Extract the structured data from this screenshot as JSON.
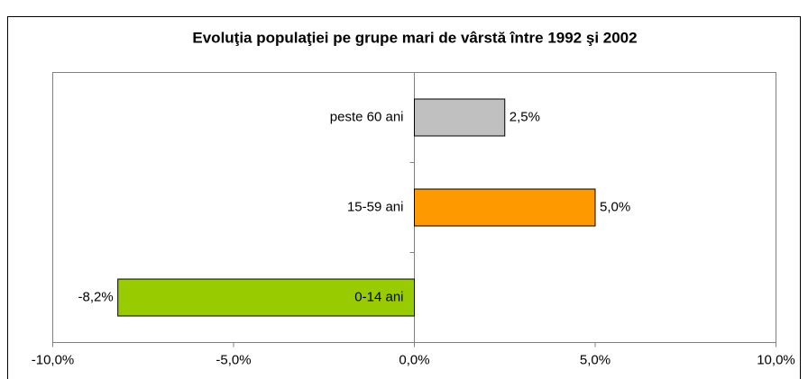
{
  "chart_data": {
    "type": "barh",
    "title": "Evoluţia populaţiei pe grupe mari de vârstă între 1992 şi 2002",
    "categories": [
      "0-14 ani",
      "15-59 ani",
      "peste 60 ani"
    ],
    "values": [
      -8.2,
      5.0,
      2.5
    ],
    "value_labels": [
      "-8,2%",
      "5,0%",
      "2,5%"
    ],
    "colors": [
      "#99cc00",
      "#ff9900",
      "#c0c0c0"
    ],
    "xlim": [
      -10,
      10
    ],
    "xticks": [
      {
        "value": -10,
        "label": "-10,0%"
      },
      {
        "value": -5,
        "label": "-5,0%"
      },
      {
        "value": 0,
        "label": "0,0%"
      },
      {
        "value": 5,
        "label": "5,0%"
      },
      {
        "value": 10,
        "label": "10,0%"
      }
    ],
    "grid": false
  }
}
